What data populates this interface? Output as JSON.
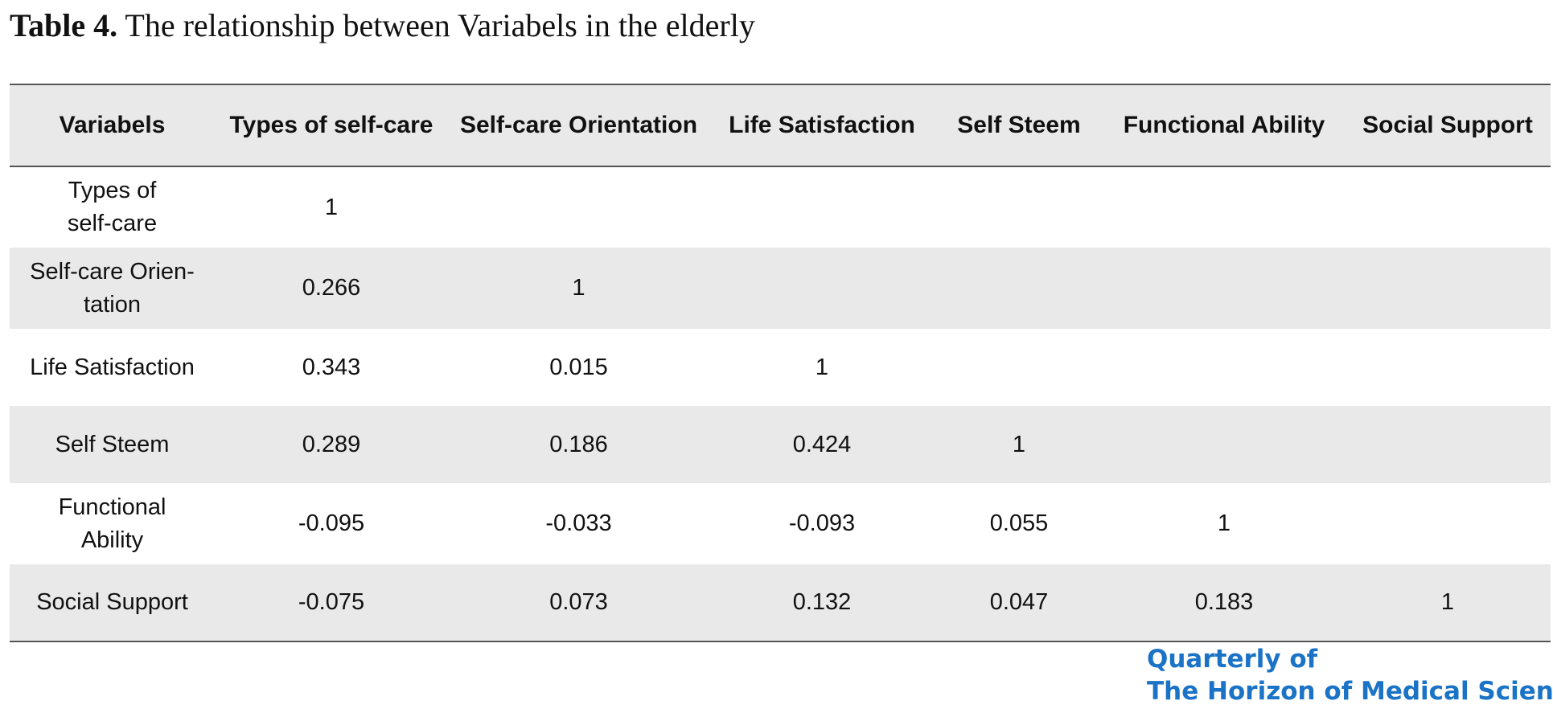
{
  "caption": {
    "label": "Table 4.",
    "text": " The relationship between Variabels in the elderly"
  },
  "table": {
    "headers": [
      "Variabels",
      "Types of self-care",
      "Self-care Orientation",
      "Life Satisfaction",
      "Self Steem",
      "Functional Ability",
      "Social Support"
    ],
    "rows": [
      {
        "label_line1": "Types of",
        "label_line2": "self-care",
        "cells": [
          "1",
          "",
          "",
          "",
          "",
          ""
        ]
      },
      {
        "label_line1": "Self-care Orien-",
        "label_line2": "tation",
        "cells": [
          "0.266",
          "1",
          "",
          "",
          "",
          ""
        ]
      },
      {
        "label_line1": "Life Satisfaction",
        "label_line2": "",
        "cells": [
          "0.343",
          "0.015",
          "1",
          "",
          "",
          ""
        ]
      },
      {
        "label_line1": "Self Steem",
        "label_line2": "",
        "cells": [
          "0.289",
          "0.186",
          "0.424",
          "1",
          "",
          ""
        ]
      },
      {
        "label_line1": "Functional",
        "label_line2": "Ability",
        "cells": [
          "-0.095",
          "-0.033",
          "-0.093",
          "0.055",
          "1",
          ""
        ]
      },
      {
        "label_line1": "Social Support",
        "label_line2": "",
        "cells": [
          "-0.075",
          "0.073",
          "0.132",
          "0.047",
          "0.183",
          "1"
        ]
      }
    ]
  },
  "logo": {
    "line1": "Quarterly of",
    "line2": "The Horizon of Medical Sciences",
    "color": "#1a73c6"
  }
}
